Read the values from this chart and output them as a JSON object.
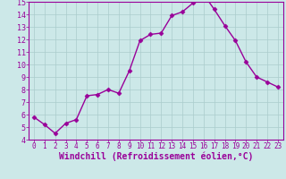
{
  "x": [
    0,
    1,
    2,
    3,
    4,
    5,
    6,
    7,
    8,
    9,
    10,
    11,
    12,
    13,
    14,
    15,
    16,
    17,
    18,
    19,
    20,
    21,
    22,
    23
  ],
  "y": [
    5.8,
    5.2,
    4.5,
    5.3,
    5.6,
    7.5,
    7.6,
    8.0,
    7.7,
    9.5,
    11.9,
    12.4,
    12.5,
    13.9,
    14.2,
    14.9,
    15.6,
    14.4,
    13.1,
    11.9,
    10.2,
    9.0,
    8.6,
    8.2
  ],
  "line_color": "#990099",
  "marker": "D",
  "marker_size": 2.5,
  "xlabel": "Windchill (Refroidissement éolien,°C)",
  "background_color": "#cce8e8",
  "grid_color": "#aacccc",
  "line_width": 1.0,
  "ylim": [
    4,
    15
  ],
  "xlim": [
    -0.5,
    23.5
  ],
  "yticks": [
    4,
    5,
    6,
    7,
    8,
    9,
    10,
    11,
    12,
    13,
    14,
    15
  ],
  "xticks": [
    0,
    1,
    2,
    3,
    4,
    5,
    6,
    7,
    8,
    9,
    10,
    11,
    12,
    13,
    14,
    15,
    16,
    17,
    18,
    19,
    20,
    21,
    22,
    23
  ]
}
